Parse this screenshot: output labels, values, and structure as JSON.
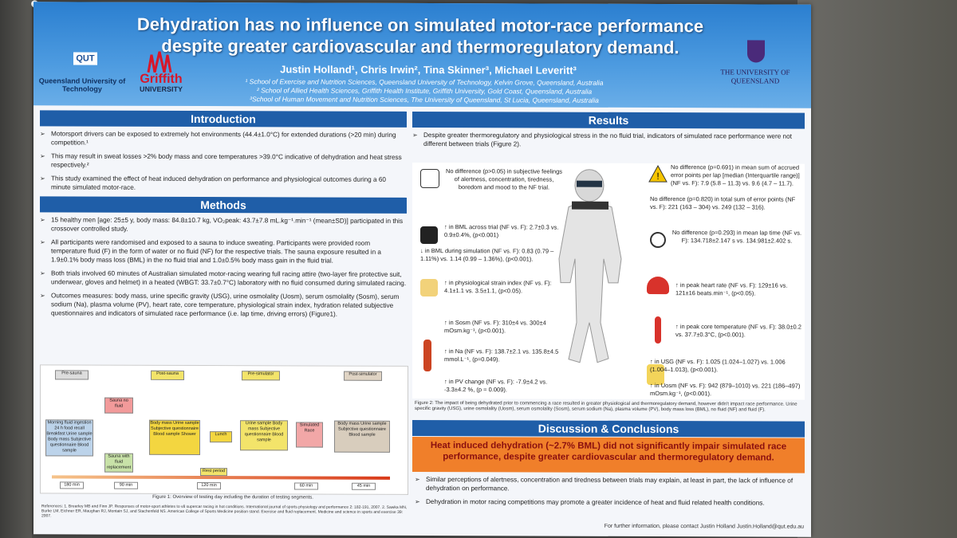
{
  "title": "Dehydration has no influence on simulated motor-race performance despite greater cardiovascular and thermoregulatory demand.",
  "authors": "Justin Holland¹, Chris Irwin², Tina Skinner³, Michael Leveritt³",
  "affiliations": [
    "¹ School of Exercise and Nutrition Sciences, Queensland University of Technology, Kelvin Grove, Queensland, Australia",
    "² School of Allied Health Sciences, Griffith Health Institute, Griffith University, Gold Coast, Queensland, Australia",
    "³School of Human Movement and Nutrition Sciences, The University of Queensland, St Lucia, Queensland, Australia"
  ],
  "logos": {
    "qut_mark": "QUT",
    "qut_name": "Queensland University of Technology",
    "griffith_name": "Griffith",
    "griffith_uni": "UNIVERSITY",
    "uq_name": "THE UNIVERSITY OF QUEENSLAND"
  },
  "introduction": {
    "heading": "Introduction",
    "bullets": [
      "Motorsport drivers can be exposed to extremely hot environments (44.4±1.0°C) for extended durations (>20 min) during competition.¹",
      "This may result in sweat losses >2% body mass and core temperatures >39.0°C indicative of dehydration and heat stress respectively.²",
      "This study examined the effect of heat induced dehydration on performance and physiological outcomes during a 60 minute simulated motor-race."
    ]
  },
  "methods": {
    "heading": "Methods",
    "bullets": [
      "15 healthy men [age: 25±5 y, body mass: 84.8±10.7 kg, VO₂peak: 43.7±7.8 mL.kg⁻¹.min⁻¹ (mean±SD)] participated in this crossover controlled study.",
      "All participants were randomised and exposed to a sauna to induce sweating. Participants were provided room temperature fluid (F) in the form of water or no fluid (NF) for the respective trials. The sauna exposure resulted in a 1.9±0.1% body mass loss (BML) in the no fluid trial and 1.0±0.5% body mass gain in the fluid trial.",
      "Both trials involved 60 minutes of Australian simulated motor-racing wearing full racing attire (two-layer fire protective suit, underwear, gloves and helmet) in a heated (WBGT: 33.7±0.7°C) laboratory with no fluid consumed during simulated racing.",
      "Outcomes measures: body mass, urine specific gravity (USG), urine osmolality (Uosm), serum osmolality (Sosm), serum sodium (Na), plasma volume (PV), heart rate, core temperature, physiological strain index, hydration related subjective questionnaires and indicators of simulated race performance (i.e. lap time, driving errors) (Figure1)."
    ]
  },
  "flow": {
    "stage_labels": [
      "Pre-sauna",
      "Post-sauna",
      "Pre-simulator",
      "Post-simulator"
    ],
    "start_box": "Morning fluid ingestion 24 h food recall Breakfast Urine sample Body mass Subjective questionnaire Blood sample",
    "sauna_no_fluid": "Sauna no fluid",
    "sauna_fluid": "Sauna with fluid replacement",
    "post_sauna_box": "Body mass Urine sample Subjective questionnaire Blood sample Shower",
    "lunch": "Lunch",
    "pre_sim_box": "Urine sample Body mass Subjective questionnaire Blood sample",
    "sim_race": "Simulated Race",
    "post_sim_box": "Body mass Urine sample Subjective questionnaire Blood sample",
    "rest": "Rest period",
    "durations": [
      "180 min",
      "90 min",
      "120 min",
      "60 min",
      "45 min"
    ],
    "caption": "Figure 1: Overview of testing day including the duration of testing segments."
  },
  "references": "References: 1. Brearley MB and Finn JP. Responses of motor-sport athletes to v8 supercar racing in hot conditions. International journal of sports physiology and performance 2: 182-191, 2007. 2. Sawka MN, Burke LM, Eichner ER, Maughan RJ, Montain SJ, and Stachenfeld NS. American College of Sports Medicine position stand. Exercise and fluid replacement. Medicine and science in sports and exercise 39: 2007.",
  "results": {
    "heading": "Results",
    "bullet": "Despite greater thermoregulatory and physiological stress in the no fluid trial, indicators of simulated race performance were not different between trials (Figure 2).",
    "items_left": [
      "No difference (p>0.05) in subjective feelings of alertness, concentration, tiredness, boredom and mood to the NF trial.",
      "↑ in BML across trial (NF vs. F): 2.7±0.3 vs. 0.9±0.4%, (p<0.001)",
      "↓ in BML during simulation (NF vs. F): 0.83 (0.79 – 1.11%) vs. 1.14 (0.99 – 1.36%), (p<0.001).",
      "↑ in physiological strain index (NF vs. F): 4.1±1.1 vs. 3.5±1.1, (p<0.05).",
      "↑ in Sosm (NF vs. F): 310±4 vs. 300±4 mOsm.kg⁻¹, (p<0.001).",
      "↑ in Na (NF vs. F): 138.7±2.1 vs. 135.8±4.5 mmol.L⁻¹, (p=0.049).",
      "↑ in PV change (NF vs. F): -7.9±4.2 vs. -3.3±4.2 %, (p = 0.009)."
    ],
    "items_right": [
      "No difference (p=0.691) in mean sum of accrued error points per lap [median (Interquartile range)] (NF vs. F): 7.9 (5.8 – 11.3) vs. 9.6 (4.7 – 11.7).",
      "No difference (p=0.820) in total sum of error points (NF vs. F): 221 (163 – 304) vs. 249 (132 – 316).",
      "No difference (p=0.293) in mean lap time (NF vs. F): 134.718±2.147 s vs. 134.981±2.402 s.",
      "↑ in peak heart rate (NF vs. F): 129±16 vs. 121±16 beats.min⁻¹, (p<0.05).",
      "↑ in peak core temperature (NF vs. F): 38.0±0.2 vs. 37.7±0.3°C, (p<0.001).",
      "↑ in USG (NF vs. F): 1.025 (1.024–1.027) vs. 1.006 (1.004–1.013), (p<0.001).",
      "↑ in Uosm (NF vs. F): 942 (879–1010) vs. 221 (186–497) mOsm.kg⁻¹, (p<0.001)."
    ],
    "caption": "Figure 2: The impact of being dehydrated prior to commencing a race resulted in greater physiological and thermoregulatory demand, however didn't impact race performance. Urine specific gravity (USG), urine osmolality (Uosm), serum osmolality (Sosm), serum sodium (Na), plasma volume (PV), body mass loss (BML), no fluid (NF) and fluid (F)."
  },
  "discussion": {
    "heading": "Discussion & Conclusions",
    "highlight": "Heat induced dehydration (~2.7% BML) did not significantly impair simulated race performance, despite greater cardiovascular and thermoregulatory demand.",
    "bullets": [
      "Similar perceptions of alertness, concentration and tiredness between trials may explain, at least in part, the lack of influence of dehydration on performance.",
      "Dehydration in motor racing competitions may promote a greater incidence of heat and fluid related health conditions."
    ],
    "contact": "For further information, please contact Justin Holland Justin.Holland@qut.edu.au"
  }
}
